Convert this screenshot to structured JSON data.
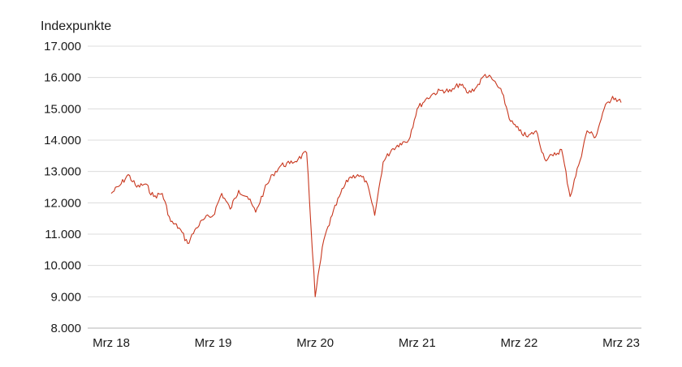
{
  "chart_data": {
    "type": "line",
    "title": "",
    "ylabel": "Indexpunkte",
    "xlabel": "",
    "ylim": [
      8000,
      17000
    ],
    "yticks": [
      8000,
      9000,
      10000,
      11000,
      12000,
      13000,
      14000,
      15000,
      16000,
      17000
    ],
    "ytick_labels": [
      "8.000",
      "9.000",
      "10.000",
      "11.000",
      "12.000",
      "13.000",
      "14.000",
      "15.000",
      "16.000",
      "17.000"
    ],
    "xlim": [
      "2018-03",
      "2023-03"
    ],
    "xticks": [
      "2018-03",
      "2019-03",
      "2020-03",
      "2021-03",
      "2022-03",
      "2023-03"
    ],
    "xtick_labels": [
      "Mrz 18",
      "Mrz 19",
      "Mrz 20",
      "Mrz 21",
      "Mrz 22",
      "Mrz 23"
    ],
    "grid": "horizontal",
    "line_color": "#c8371e",
    "series": [
      {
        "x": [
          "2018-03",
          "2018-04",
          "2018-05",
          "2018-06",
          "2018-07",
          "2018-08",
          "2018-09",
          "2018-10",
          "2018-11",
          "2018-12",
          "2019-01",
          "2019-02",
          "2019-03",
          "2019-04",
          "2019-05",
          "2019-06",
          "2019-07",
          "2019-08",
          "2019-09",
          "2019-10",
          "2019-11",
          "2019-12",
          "2020-01",
          "2020-02",
          "2020-03",
          "2020-04",
          "2020-05",
          "2020-06",
          "2020-07",
          "2020-08",
          "2020-09",
          "2020-10",
          "2020-11",
          "2020-12",
          "2021-01",
          "2021-02",
          "2021-03",
          "2021-04",
          "2021-05",
          "2021-06",
          "2021-07",
          "2021-08",
          "2021-09",
          "2021-10",
          "2021-11",
          "2021-12",
          "2022-01",
          "2022-02",
          "2022-03",
          "2022-04",
          "2022-05",
          "2022-06",
          "2022-07",
          "2022-08",
          "2022-09",
          "2022-10",
          "2022-11",
          "2022-12",
          "2023-01",
          "2023-02",
          "2023-03"
        ],
        "values": [
          12300,
          12550,
          12900,
          12500,
          12600,
          12200,
          12300,
          11400,
          11200,
          10700,
          11200,
          11500,
          11600,
          12300,
          11800,
          12400,
          12200,
          11700,
          12400,
          12900,
          13200,
          13250,
          13400,
          13600,
          9000,
          10800,
          11600,
          12300,
          12800,
          12900,
          12700,
          11600,
          13300,
          13700,
          13900,
          14000,
          15000,
          15300,
          15500,
          15600,
          15550,
          15800,
          15500,
          15700,
          16100,
          15900,
          15500,
          14600,
          14300,
          14100,
          14300,
          13400,
          13500,
          13700,
          12200,
          13200,
          14300,
          14100,
          15000,
          15400,
          15200
        ]
      }
    ]
  }
}
